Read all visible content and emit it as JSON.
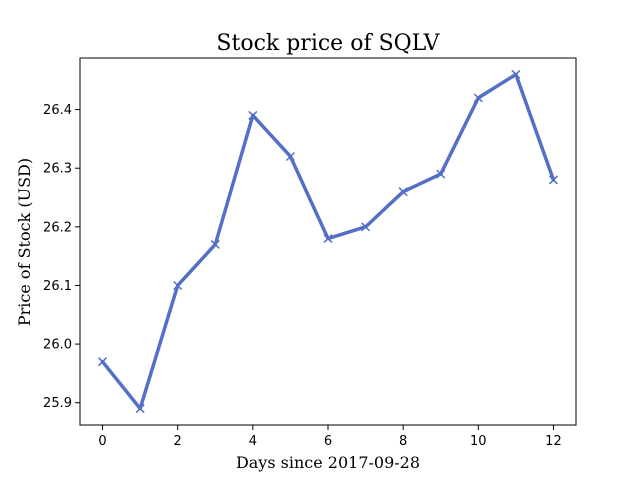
{
  "chart_data": {
    "type": "line",
    "title": "Stock price of SQLV",
    "xlabel": "Days since 2017-09-28",
    "ylabel": "Price of Stock (USD)",
    "x": [
      0,
      1,
      2,
      3,
      4,
      5,
      6,
      7,
      8,
      9,
      10,
      11,
      12
    ],
    "series": [
      {
        "values": [
          25.97,
          25.89,
          26.1,
          26.17,
          26.39,
          26.32,
          26.18,
          26.2,
          26.26,
          26.29,
          26.42,
          26.46,
          26.28
        ],
        "color": "#5470c6",
        "marker": "x"
      }
    ],
    "xlim": [
      -0.6,
      12.6
    ],
    "ylim": [
      25.862,
      26.488
    ],
    "xticks": [
      0,
      2,
      4,
      6,
      8,
      10,
      12
    ],
    "xtick_labels": [
      "0",
      "2",
      "4",
      "6",
      "8",
      "10",
      "12"
    ],
    "yticks": [
      25.9,
      26.0,
      26.1,
      26.2,
      26.3,
      26.4
    ],
    "ytick_labels": [
      "25.9",
      "26.0",
      "26.1",
      "26.2",
      "26.3",
      "26.4"
    ],
    "grid": false,
    "legend": "none"
  }
}
